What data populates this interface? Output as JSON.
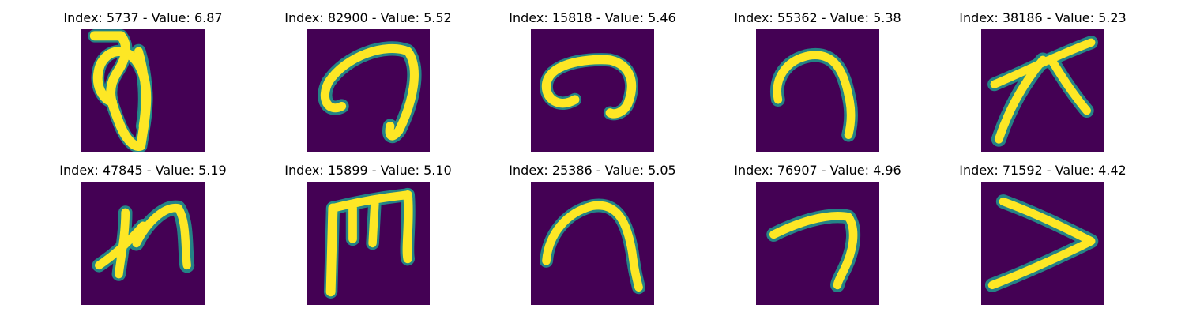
{
  "chart_data": {
    "type": "image_grid",
    "grid": {
      "rows": 2,
      "cols": 5
    },
    "axis": "off",
    "colormap": "viridis",
    "colors": {
      "background": "#440154",
      "mid": "#21918c",
      "high": "#fde725"
    },
    "panels": [
      {
        "title": "Index: 5737 - Value: 6.87",
        "index": 5737,
        "value": 6.87,
        "glyph": "loop-digit"
      },
      {
        "title": "Index: 82900 - Value: 5.52",
        "index": 82900,
        "value": 5.52,
        "glyph": "arch-hook"
      },
      {
        "title": "Index: 15818 - Value: 5.46",
        "index": 15818,
        "value": 5.46,
        "glyph": "c-curl"
      },
      {
        "title": "Index: 55362 - Value: 5.38",
        "index": 55362,
        "value": 5.38,
        "glyph": "arch"
      },
      {
        "title": "Index: 38186 - Value: 5.23",
        "index": 38186,
        "value": 5.23,
        "glyph": "crossed-strokes"
      },
      {
        "title": "Index: 47845 - Value: 5.19",
        "index": 47845,
        "value": 5.19,
        "glyph": "x-arch"
      },
      {
        "title": "Index: 15899 - Value: 5.10",
        "index": 15899,
        "value": 5.1,
        "glyph": "m-shape"
      },
      {
        "title": "Index: 25386 - Value: 5.05",
        "index": 25386,
        "value": 5.05,
        "glyph": "arch-wide"
      },
      {
        "title": "Index: 76907 - Value: 4.96",
        "index": 76907,
        "value": 4.96,
        "glyph": "seven-hook"
      },
      {
        "title": "Index: 71592 - Value: 4.42",
        "index": 71592,
        "value": 4.42,
        "glyph": "chevron"
      }
    ]
  }
}
